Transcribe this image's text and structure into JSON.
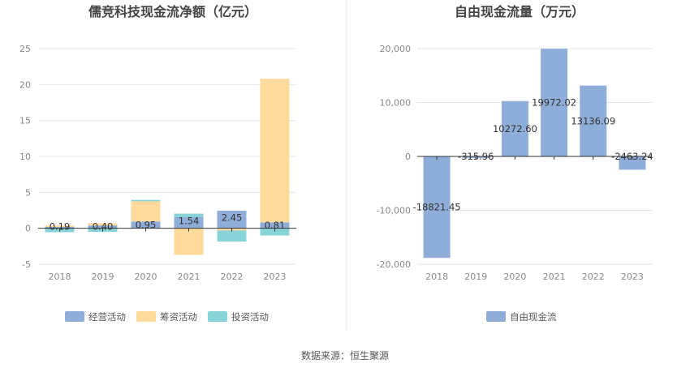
{
  "source_text": "数据来源：恒生聚源",
  "colors": {
    "operating": "#8eadd9",
    "financing": "#fedb9b",
    "investing": "#88d3d8",
    "free_cash_flow": "#8eadd9",
    "grid": "#e6e6e6",
    "axis": "#333333",
    "divider": "#e8e8e8"
  },
  "chart_data": [
    {
      "type": "bar",
      "stacked": true,
      "title": "儒竞科技现金流净额（亿元）",
      "categories": [
        "2018",
        "2019",
        "2020",
        "2021",
        "2022",
        "2023"
      ],
      "ylim": [
        -5,
        25
      ],
      "yticks": [
        "-5",
        "0",
        "5",
        "10",
        "15",
        "20",
        "25"
      ],
      "grid": true,
      "legend_position": "bottom",
      "series": [
        {
          "name": "经营活动",
          "values": [
            0.19,
            0.4,
            0.95,
            1.54,
            2.45,
            0.81
          ],
          "labels": [
            "0.19",
            "0.40",
            "0.95",
            "1.54",
            "2.45",
            "0.81"
          ]
        },
        {
          "name": "筹资活动",
          "values": [
            0.2,
            0.3,
            2.8,
            -3.7,
            -0.3,
            20.0
          ]
        },
        {
          "name": "投资活动",
          "values": [
            -0.55,
            -0.5,
            0.2,
            0.5,
            -1.55,
            -1.0
          ]
        }
      ]
    },
    {
      "type": "bar",
      "title": "自由现金流量（万元）",
      "categories": [
        "2018",
        "2019",
        "2020",
        "2021",
        "2022",
        "2023"
      ],
      "ylim": [
        -20000,
        20000
      ],
      "yticks": [
        "-20,000",
        "-10,000",
        "0",
        "10,000",
        "20,000"
      ],
      "grid": true,
      "legend_position": "bottom",
      "series": [
        {
          "name": "自由现金流",
          "values": [
            -18821.45,
            -315.96,
            10272.6,
            19972.02,
            13136.09,
            -2463.24
          ],
          "labels": [
            "-18821.45",
            "-315.96",
            "10272.60",
            "19972.02",
            "13136.09",
            "-2463.24"
          ]
        }
      ]
    }
  ]
}
